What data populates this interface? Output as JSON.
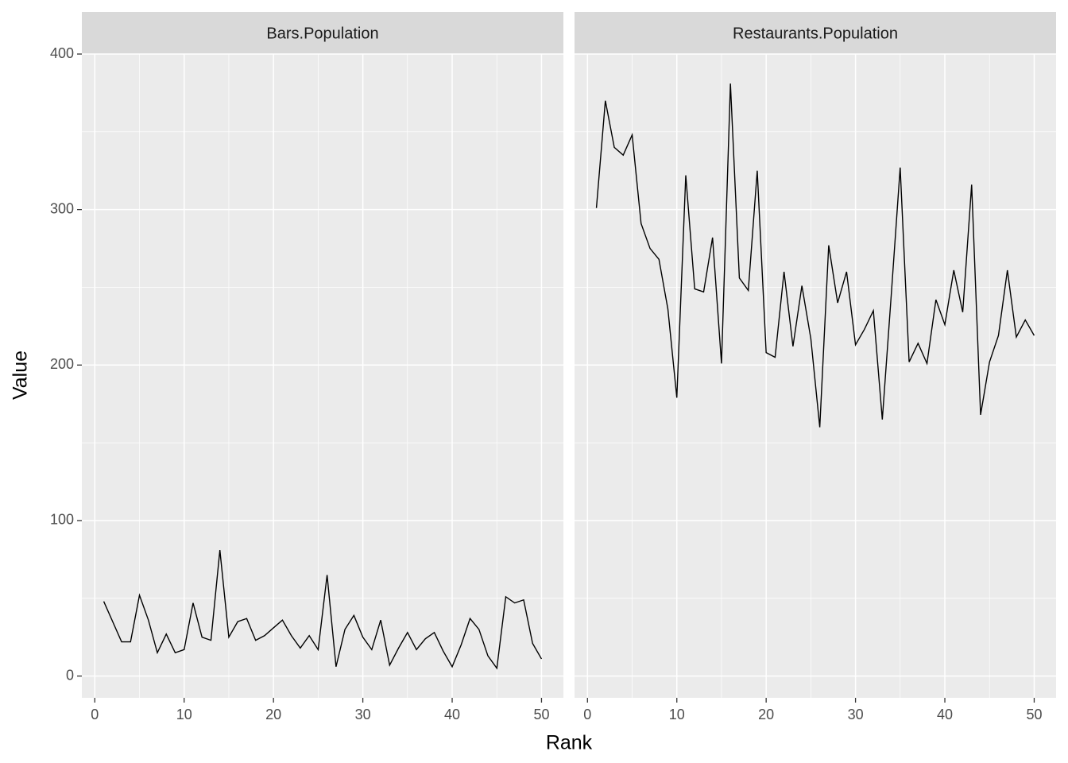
{
  "chart_data": [
    {
      "type": "line",
      "title": "Bars.Population",
      "x_label": "Rank",
      "y_label": "Value",
      "color": "#000000",
      "x": [
        1,
        2,
        3,
        4,
        5,
        6,
        7,
        8,
        9,
        10,
        11,
        12,
        13,
        14,
        15,
        16,
        17,
        18,
        19,
        20,
        21,
        22,
        23,
        24,
        25,
        26,
        27,
        28,
        29,
        30,
        31,
        32,
        33,
        34,
        35,
        36,
        37,
        38,
        39,
        40,
        41,
        42,
        43,
        44,
        45,
        46,
        47,
        48,
        49,
        50
      ],
      "values": [
        48,
        35,
        22,
        22,
        52,
        36,
        15,
        27,
        15,
        17,
        47,
        25,
        23,
        81,
        25,
        35,
        37,
        23,
        26,
        31,
        36,
        26,
        18,
        26,
        17,
        65,
        6,
        30,
        39,
        25,
        17,
        36,
        7,
        18,
        28,
        17,
        24,
        28,
        16,
        6,
        20,
        37,
        30,
        13,
        5,
        51,
        47,
        49,
        21,
        11
      ],
      "xlim": [
        -1.45,
        52.45
      ],
      "ylim": [
        -14,
        400
      ],
      "xticks": [
        0,
        10,
        20,
        30,
        40,
        50
      ],
      "yticks": [
        0,
        100,
        200,
        300,
        400
      ],
      "grid": true
    },
    {
      "type": "line",
      "title": "Restaurants.Population",
      "color": "#000000",
      "x": [
        1,
        2,
        3,
        4,
        5,
        6,
        7,
        8,
        9,
        10,
        11,
        12,
        13,
        14,
        15,
        16,
        17,
        18,
        19,
        20,
        21,
        22,
        23,
        24,
        25,
        26,
        27,
        28,
        29,
        30,
        31,
        32,
        33,
        34,
        35,
        36,
        37,
        38,
        39,
        40,
        41,
        42,
        43,
        44,
        45,
        46,
        47,
        48,
        49,
        50
      ],
      "values": [
        301,
        370,
        340,
        335,
        348,
        291,
        275,
        268,
        236,
        179,
        322,
        249,
        247,
        282,
        201,
        381,
        256,
        248,
        325,
        208,
        205,
        260,
        212,
        251,
        217,
        160,
        277,
        240,
        260,
        213,
        223,
        235,
        165,
        245,
        327,
        202,
        214,
        201,
        242,
        226,
        261,
        234,
        316,
        168,
        202,
        219,
        261,
        218,
        229,
        219
      ],
      "xlim": [
        -1.45,
        52.45
      ],
      "ylim": [
        -14,
        400
      ],
      "xticks": [
        0,
        10,
        20,
        30,
        40,
        50
      ],
      "yticks": [
        0,
        100,
        200,
        300,
        400
      ],
      "grid": true
    }
  ]
}
